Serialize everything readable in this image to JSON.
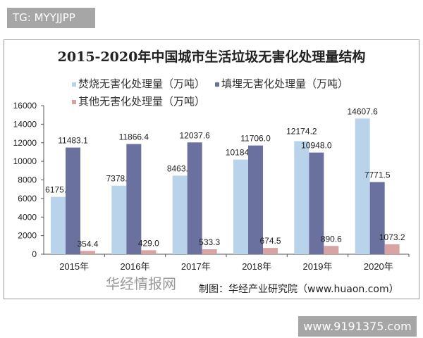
{
  "tag": "TG: MYYJJPP",
  "watermark": "www.9191375.com",
  "source": "制图：华经产业研究院（www.huaon.com）",
  "logo_text": "华经情报网",
  "chart_data": {
    "type": "bar",
    "title": "2015-2020年中国城市生活垃圾无害化处理量结构",
    "categories": [
      "2015年",
      "2016年",
      "2017年",
      "2018年",
      "2019年",
      "2020年"
    ],
    "ylim": [
      0,
      16000
    ],
    "yticks": [
      0,
      2000,
      4000,
      6000,
      8000,
      10000,
      12000,
      14000,
      16000
    ],
    "grid": false,
    "legend": "top",
    "series": [
      {
        "name": "焚烧无害化处理量（万吨）",
        "color": "#b9d3ea",
        "values": [
          6175.5,
          7378.4,
          8463.3,
          10184.9,
          12174.2,
          14607.6
        ],
        "labels": [
          "6175.5",
          "7378.4",
          "8463.3",
          "10184.9",
          "12174.2",
          "14607.6"
        ]
      },
      {
        "name": "填埋无害化处理量（万吨）",
        "color": "#6a719e",
        "values": [
          11483.1,
          11866.4,
          12037.6,
          11706.0,
          10948.0,
          7771.5
        ],
        "labels": [
          "11483.1",
          "11866.4",
          "12037.6",
          "11706.0",
          "10948.0",
          "7771.5"
        ]
      },
      {
        "name": "其他无害化处理量（万吨）",
        "color": "#d8a3a3",
        "values": [
          354.4,
          429.0,
          533.3,
          674.5,
          890.6,
          1073.2
        ],
        "labels": [
          "354.4",
          "429.0",
          "533.3",
          "674.5",
          "890.6",
          "1073.2"
        ]
      }
    ]
  }
}
